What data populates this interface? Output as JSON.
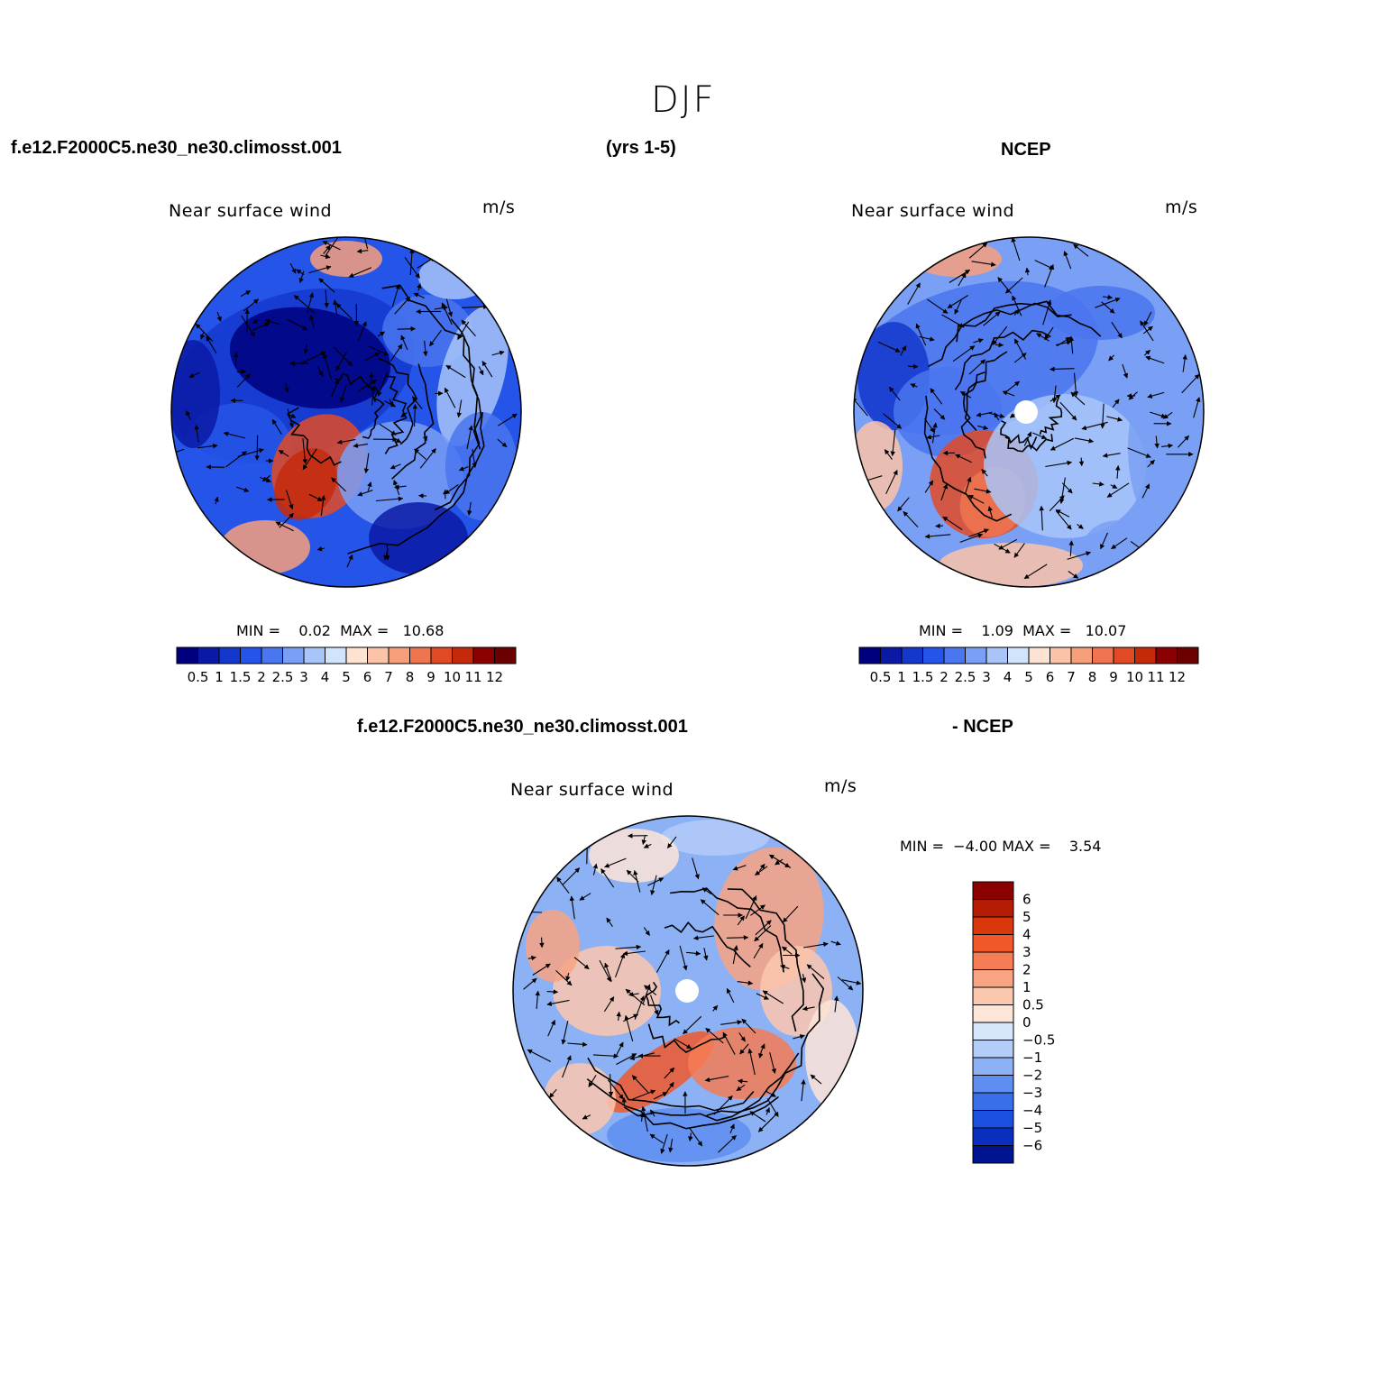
{
  "title": "DJF",
  "header": {
    "case_name": "f.e12.F2000C5.ne30_ne30.climosst.001",
    "years": "(yrs 1-5)",
    "obs_name": "NCEP"
  },
  "diff_header": {
    "case_name": "f.e12.F2000C5.ne30_ne30.climosst.001",
    "obs_name": "- NCEP"
  },
  "panels": [
    {
      "id": "model",
      "variable": "Near surface wind",
      "units": "m/s",
      "min_label": "MIN =",
      "min_value": "0.02",
      "max_label": "MAX =",
      "max_value": "10.68",
      "colorbar_labels": [
        "0.5",
        "1",
        "1.5",
        "2",
        "2.5",
        "3",
        "4",
        "5",
        "6",
        "7",
        "8",
        "9",
        "10",
        "11",
        "12"
      ]
    },
    {
      "id": "obs",
      "variable": "Near surface wind",
      "units": "m/s",
      "min_label": "MIN =",
      "min_value": "1.09",
      "max_label": "MAX =",
      "max_value": "10.07",
      "colorbar_labels": [
        "0.5",
        "1",
        "1.5",
        "2",
        "2.5",
        "3",
        "4",
        "5",
        "6",
        "7",
        "8",
        "9",
        "10",
        "11",
        "12"
      ]
    },
    {
      "id": "diff",
      "variable": "Near surface wind",
      "units": "m/s",
      "min_label": "MIN =",
      "min_value": "−4.00",
      "max_label": "MAX =",
      "max_value": "3.54",
      "colorbar_labels": [
        "6",
        "5",
        "4",
        "3",
        "2",
        "1",
        "0.5",
        "0",
        "−0.5",
        "−1",
        "−2",
        "−3",
        "−4",
        "−5",
        "−6"
      ]
    }
  ],
  "colors": {
    "abs_scale": [
      "#00007f",
      "#0a1aa6",
      "#1438cc",
      "#2455e8",
      "#4a76ef",
      "#7aa0f5",
      "#a8c4f8",
      "#d2e4fb",
      "#fde3d2",
      "#fbc3a8",
      "#f79f7b",
      "#ef7450",
      "#e24a26",
      "#c42a0a",
      "#8b0000",
      "#6a0000"
    ],
    "diff_scale": [
      "#8b0000",
      "#b51c05",
      "#d8380c",
      "#f0582a",
      "#f47d55",
      "#f8a381",
      "#fbc7ae",
      "#fde5d7",
      "#d6e6fb",
      "#b3cdf8",
      "#8cb1f4",
      "#5e8ef0",
      "#3a6fea",
      "#1a4fe0",
      "#0a2fbf",
      "#00148f"
    ]
  },
  "chart_data": [
    {
      "type": "heatmap",
      "projection": "north polar stereographic",
      "title": "Near surface wind",
      "subtitle": "f.e12.F2000C5.ne30_ne30.climosst.001 (yrs 1-5), DJF",
      "units": "m/s",
      "overlay": "wind vectors",
      "levels": [
        0.5,
        1,
        1.5,
        2,
        2.5,
        3,
        4,
        5,
        6,
        7,
        8,
        9,
        10,
        11,
        12
      ],
      "min": 0.02,
      "max": 10.68
    },
    {
      "type": "heatmap",
      "projection": "north polar stereographic",
      "title": "Near surface wind",
      "subtitle": "NCEP, DJF",
      "units": "m/s",
      "overlay": "wind vectors",
      "levels": [
        0.5,
        1,
        1.5,
        2,
        2.5,
        3,
        4,
        5,
        6,
        7,
        8,
        9,
        10,
        11,
        12
      ],
      "min": 1.09,
      "max": 10.07
    },
    {
      "type": "heatmap",
      "projection": "north polar stereographic",
      "title": "Near surface wind",
      "subtitle": "f.e12.F2000C5.ne30_ne30.climosst.001 - NCEP, DJF",
      "units": "m/s",
      "overlay": "wind vector differences",
      "levels": [
        -6,
        -5,
        -4,
        -3,
        -2,
        -1,
        -0.5,
        0,
        0.5,
        1,
        2,
        3,
        4,
        5,
        6
      ],
      "min": -4.0,
      "max": 3.54
    }
  ]
}
